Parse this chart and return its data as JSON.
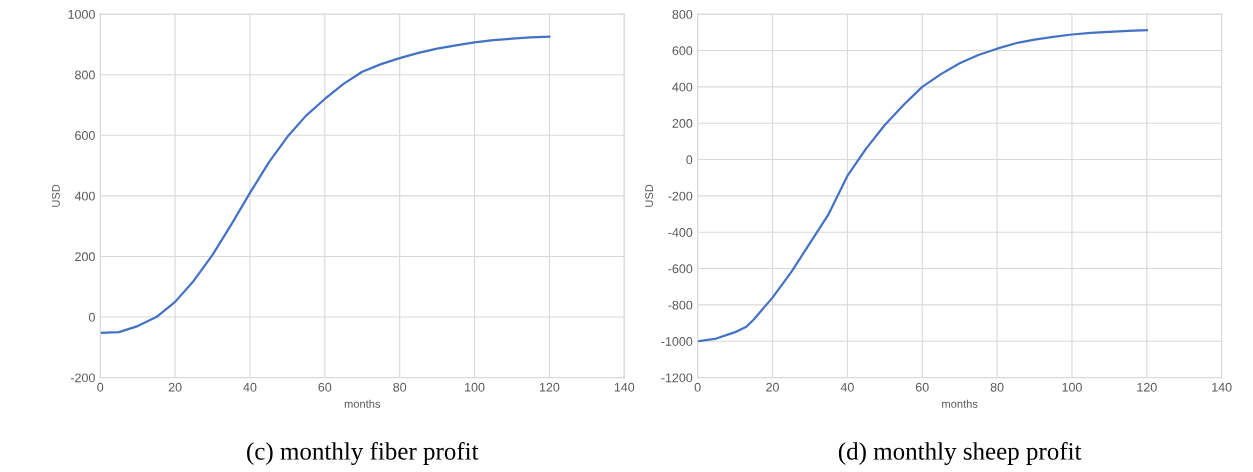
{
  "chart_data": [
    {
      "type": "line",
      "title": "(c) monthly fiber profit",
      "xlabel": "months",
      "ylabel": "USD",
      "xlim": [
        0,
        140
      ],
      "xticks": [
        0,
        20,
        40,
        60,
        80,
        100,
        120,
        140
      ],
      "ylim": [
        -200,
        1000
      ],
      "yticks": [
        -200,
        0,
        200,
        400,
        600,
        800,
        1000
      ],
      "grid": true,
      "marker": "none",
      "line_style": "solid",
      "series": [
        {
          "color": "#4472c4",
          "x": [
            0,
            5,
            10,
            15,
            20,
            25,
            30,
            35,
            40,
            45,
            50,
            55,
            60,
            65,
            70,
            75,
            80,
            85,
            90,
            95,
            100,
            105,
            110,
            115,
            120
          ],
          "values": [
            -52,
            -50,
            -30,
            0,
            50,
            120,
            205,
            305,
            410,
            510,
            595,
            665,
            720,
            770,
            810,
            835,
            855,
            872,
            886,
            897,
            907,
            914,
            919,
            923,
            926
          ]
        }
      ]
    },
    {
      "type": "line",
      "title": "(d) monthly sheep profit",
      "xlabel": "months",
      "ylabel": "USD",
      "xlim": [
        0,
        140
      ],
      "xticks": [
        0,
        20,
        40,
        60,
        80,
        100,
        120,
        140
      ],
      "ylim": [
        -1200,
        800
      ],
      "yticks": [
        -1200,
        -1000,
        -800,
        -600,
        -400,
        -200,
        0,
        200,
        400,
        600,
        800
      ],
      "grid": true,
      "marker": "none",
      "line_style": "solid",
      "series": [
        {
          "color": "#4472c4",
          "x": [
            0,
            5,
            10,
            13,
            15,
            20,
            25,
            30,
            35,
            40,
            45,
            50,
            55,
            60,
            65,
            70,
            75,
            80,
            85,
            90,
            95,
            100,
            105,
            110,
            115,
            120
          ],
          "values": [
            -1000,
            -985,
            -950,
            -920,
            -880,
            -760,
            -620,
            -460,
            -300,
            -90,
            60,
            190,
            300,
            400,
            470,
            530,
            575,
            610,
            640,
            660,
            675,
            688,
            697,
            703,
            708,
            712
          ]
        }
      ]
    }
  ]
}
